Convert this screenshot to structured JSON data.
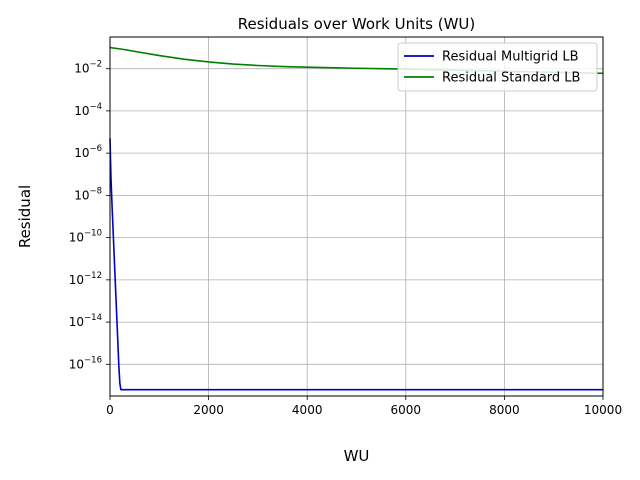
{
  "chart_data": {
    "type": "line",
    "title": "Residuals over Work Units (WU)",
    "xlabel": "WU",
    "ylabel": "Residual",
    "xlim": [
      0,
      10000
    ],
    "ylim_log10": [
      -17.5,
      -0.5
    ],
    "y_scale": "log",
    "grid": true,
    "legend_position": "top-right",
    "x_ticks": [
      "0",
      "2000",
      "4000",
      "6000",
      "8000",
      "10000"
    ],
    "y_tick_exponents": [
      "-16",
      "-14",
      "-12",
      "-10",
      "-8",
      "-6",
      "-4",
      "-2"
    ],
    "y_tick_base": "10",
    "series": [
      {
        "name": "Residual Multigrid LB",
        "color": "#0000cc",
        "x": [
          0,
          20,
          40,
          60,
          80,
          100,
          120,
          140,
          160,
          180,
          200,
          220,
          240,
          300,
          500,
          1000,
          2000,
          4000,
          6000,
          8000,
          10000
        ],
        "log10_y": [
          -5.3,
          -7.2,
          -8.4,
          -9.5,
          -10.6,
          -11.7,
          -12.8,
          -13.9,
          -15.0,
          -16.1,
          -16.9,
          -17.2,
          -17.2,
          -17.2,
          -17.2,
          -17.2,
          -17.2,
          -17.2,
          -17.2,
          -17.2,
          -17.2
        ]
      },
      {
        "name": "Residual Standard LB",
        "color": "#008000",
        "x": [
          0,
          250,
          500,
          1000,
          1500,
          2000,
          2500,
          3000,
          3500,
          4000,
          5000,
          6000,
          7000,
          8000,
          9000,
          10000
        ],
        "log10_y": [
          -1.0,
          -1.08,
          -1.18,
          -1.38,
          -1.55,
          -1.68,
          -1.78,
          -1.85,
          -1.9,
          -1.93,
          -1.98,
          -2.02,
          -2.07,
          -2.12,
          -2.17,
          -2.22
        ]
      }
    ]
  }
}
